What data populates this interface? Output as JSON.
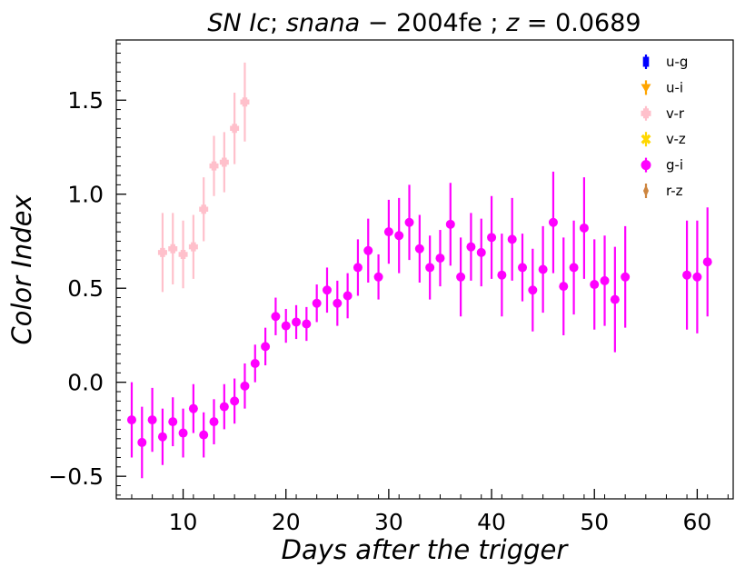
{
  "chart_data": {
    "type": "scatter",
    "title": {
      "part1": "SN Ic",
      "sep1": "; ",
      "part2": "snana",
      "minus": " − ",
      "part3": "2004fe",
      "sep2": " ; ",
      "part4": "z",
      "eq": " = ",
      "part5": "0.0689"
    },
    "xlabel": "Days after the trigger",
    "ylabel": "Color Index",
    "xlim": [
      3.5,
      63.5
    ],
    "ylim": [
      -0.62,
      1.82
    ],
    "xticks": [
      10,
      20,
      30,
      40,
      50,
      60
    ],
    "xtick_labels": [
      "10",
      "20",
      "30",
      "40",
      "50",
      "60"
    ],
    "yticks": [
      -0.5,
      0.0,
      0.5,
      1.0,
      1.5
    ],
    "ytick_labels": [
      "−0.5",
      "0.0",
      "0.5",
      "1.0",
      "1.5"
    ],
    "legend_position": "top-right",
    "series": [
      {
        "name": "u-g",
        "color": "#0000ff",
        "marker": "square",
        "x": [],
        "y": [],
        "err": []
      },
      {
        "name": "u-i",
        "color": "#ffa500",
        "marker": "triangle-down",
        "x": [],
        "y": [],
        "err": []
      },
      {
        "name": "v-r",
        "color": "#ffc0cb",
        "marker": "plus",
        "x": [
          8,
          9,
          10,
          11,
          12,
          13,
          14,
          15,
          16
        ],
        "y": [
          0.69,
          0.71,
          0.68,
          0.72,
          0.92,
          1.15,
          1.17,
          1.35,
          1.49
        ],
        "err": [
          0.21,
          0.19,
          0.18,
          0.17,
          0.17,
          0.16,
          0.16,
          0.19,
          0.21
        ]
      },
      {
        "name": "v-z",
        "color": "#ffd700",
        "marker": "x",
        "x": [],
        "y": [],
        "err": []
      },
      {
        "name": "g-i",
        "color": "#ff00ff",
        "marker": "circle",
        "x": [
          5,
          6,
          7,
          8,
          9,
          10,
          11,
          12,
          13,
          14,
          15,
          16,
          17,
          18,
          19,
          20,
          21,
          22,
          23,
          24,
          25,
          26,
          27,
          28,
          29,
          30,
          31,
          32,
          33,
          34,
          35,
          36,
          37,
          38,
          39,
          40,
          41,
          42,
          43,
          44,
          45,
          46,
          47,
          48,
          49,
          50,
          51,
          52,
          53,
          59,
          60,
          61
        ],
        "y": [
          -0.2,
          -0.32,
          -0.2,
          -0.29,
          -0.21,
          -0.27,
          -0.14,
          -0.28,
          -0.21,
          -0.13,
          -0.1,
          -0.02,
          0.1,
          0.19,
          0.35,
          0.3,
          0.32,
          0.31,
          0.42,
          0.49,
          0.42,
          0.46,
          0.61,
          0.7,
          0.56,
          0.8,
          0.78,
          0.85,
          0.71,
          0.61,
          0.66,
          0.84,
          0.56,
          0.72,
          0.69,
          0.77,
          0.57,
          0.76,
          0.61,
          0.49,
          0.6,
          0.85,
          0.51,
          0.61,
          0.82,
          0.52,
          0.54,
          0.44,
          0.56,
          0.57,
          0.56,
          0.64
        ],
        "err": [
          0.2,
          0.19,
          0.17,
          0.15,
          0.13,
          0.13,
          0.13,
          0.12,
          0.12,
          0.12,
          0.12,
          0.12,
          0.1,
          0.1,
          0.1,
          0.09,
          0.09,
          0.09,
          0.1,
          0.12,
          0.12,
          0.12,
          0.15,
          0.17,
          0.12,
          0.17,
          0.2,
          0.2,
          0.18,
          0.17,
          0.15,
          0.22,
          0.21,
          0.18,
          0.18,
          0.22,
          0.22,
          0.22,
          0.18,
          0.22,
          0.23,
          0.27,
          0.26,
          0.25,
          0.27,
          0.24,
          0.24,
          0.28,
          0.27,
          0.29,
          0.3,
          0.29
        ]
      },
      {
        "name": "r-z",
        "color": "#cd853f",
        "marker": "thin-diamond",
        "x": [],
        "y": [],
        "err": []
      }
    ]
  }
}
